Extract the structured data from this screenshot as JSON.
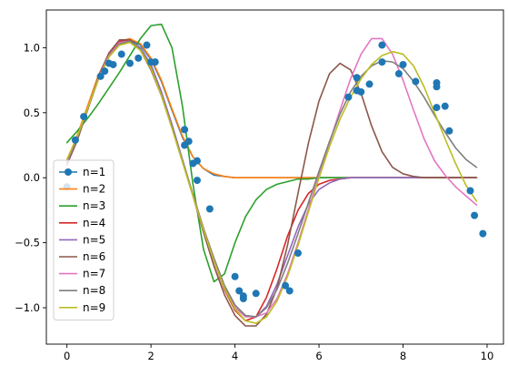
{
  "chart_data": {
    "type": "line",
    "title": "",
    "xlabel": "",
    "ylabel": "",
    "xlim": [
      -0.49,
      10.39
    ],
    "ylim": [
      -1.28,
      1.29
    ],
    "x_ticks": [
      0,
      2,
      4,
      6,
      8,
      10
    ],
    "y_ticks": [
      -1.0,
      -0.5,
      0.0,
      0.5,
      1.0
    ],
    "x_tick_labels": [
      "0",
      "2",
      "4",
      "6",
      "8",
      "10"
    ],
    "y_tick_labels": [
      "−1.0",
      "−0.5",
      "0.0",
      "0.5",
      "1.0"
    ],
    "grid": false,
    "legend_position": "lower-left",
    "scatter": {
      "color": "#1f77b4",
      "points": [
        [
          0.0,
          -0.07
        ],
        [
          0.2,
          0.29
        ],
        [
          0.4,
          0.47
        ],
        [
          0.8,
          0.78
        ],
        [
          0.9,
          0.82
        ],
        [
          1.0,
          0.88
        ],
        [
          1.1,
          0.87
        ],
        [
          1.3,
          0.95
        ],
        [
          1.5,
          0.88
        ],
        [
          1.7,
          0.92
        ],
        [
          1.9,
          1.02
        ],
        [
          2.0,
          0.89
        ],
        [
          2.1,
          0.89
        ],
        [
          2.8,
          0.37
        ],
        [
          2.8,
          0.25
        ],
        [
          2.9,
          0.28
        ],
        [
          3.0,
          0.11
        ],
        [
          3.1,
          -0.02
        ],
        [
          3.1,
          0.13
        ],
        [
          3.4,
          -0.24
        ],
        [
          4.0,
          -0.76
        ],
        [
          4.1,
          -0.87
        ],
        [
          4.2,
          -0.91
        ],
        [
          4.2,
          -0.93
        ],
        [
          4.5,
          -0.89
        ],
        [
          5.2,
          -0.83
        ],
        [
          5.3,
          -0.87
        ],
        [
          5.5,
          -0.58
        ],
        [
          6.7,
          0.62
        ],
        [
          6.9,
          0.67
        ],
        [
          6.9,
          0.77
        ],
        [
          7.0,
          0.66
        ],
        [
          7.2,
          0.72
        ],
        [
          7.5,
          1.02
        ],
        [
          7.5,
          0.89
        ],
        [
          7.9,
          0.8
        ],
        [
          8.0,
          0.87
        ],
        [
          8.3,
          0.74
        ],
        [
          8.8,
          0.73
        ],
        [
          8.8,
          0.7
        ],
        [
          8.8,
          0.54
        ],
        [
          9.0,
          0.55
        ],
        [
          9.1,
          0.36
        ],
        [
          9.6,
          -0.1
        ],
        [
          9.7,
          -0.29
        ],
        [
          9.9,
          -0.43
        ]
      ]
    },
    "x": [
      0.0,
      0.25,
      0.5,
      0.75,
      1.0,
      1.25,
      1.5,
      1.75,
      2.0,
      2.25,
      2.5,
      2.75,
      3.0,
      3.25,
      3.5,
      3.75,
      4.0,
      4.25,
      4.5,
      4.75,
      5.0,
      5.25,
      5.5,
      5.75,
      6.0,
      6.25,
      6.5,
      6.75,
      7.0,
      7.25,
      7.5,
      7.75,
      8.0,
      8.25,
      8.5,
      8.75,
      9.0,
      9.25,
      9.5,
      9.75
    ],
    "series": [
      {
        "name": "n=1",
        "color": "#1f77b4",
        "values": [
          0.12,
          0.32,
          0.55,
          0.78,
          0.94,
          1.04,
          1.06,
          1.02,
          0.91,
          0.74,
          0.52,
          0.31,
          0.16,
          0.07,
          0.02,
          0.01,
          0.0,
          0.0,
          0.0,
          0.0,
          0.0,
          0.0,
          0.0,
          0.0,
          0.0,
          0.0,
          0.0,
          0.0,
          0.0,
          0.0,
          0.0,
          0.0,
          0.0,
          0.0,
          0.0,
          0.0,
          0.0,
          0.0,
          0.0,
          0.0
        ]
      },
      {
        "name": "n=2",
        "color": "#ff7f0e",
        "values": [
          0.13,
          0.33,
          0.56,
          0.79,
          0.95,
          1.05,
          1.07,
          1.03,
          0.92,
          0.75,
          0.53,
          0.32,
          0.16,
          0.07,
          0.03,
          0.01,
          0.0,
          0.0,
          0.0,
          0.0,
          0.0,
          0.0,
          0.0,
          0.0,
          0.0,
          0.0,
          0.0,
          0.0,
          0.0,
          0.0,
          0.0,
          0.0,
          0.0,
          0.0,
          0.0,
          0.0,
          0.0,
          0.0,
          0.0,
          0.0
        ]
      },
      {
        "name": "n=3",
        "color": "#2ca02c",
        "values": [
          0.27,
          0.36,
          0.46,
          0.57,
          0.69,
          0.81,
          0.94,
          1.07,
          1.17,
          1.18,
          1.0,
          0.55,
          -0.05,
          -0.55,
          -0.8,
          -0.74,
          -0.5,
          -0.3,
          -0.17,
          -0.09,
          -0.05,
          -0.03,
          -0.01,
          -0.01,
          0.0,
          0.0,
          0.0,
          0.0,
          0.0,
          0.0,
          0.0,
          0.0,
          0.0,
          0.0,
          0.0,
          0.0,
          0.0,
          0.0,
          0.0,
          0.0
        ]
      },
      {
        "name": "n=4",
        "color": "#d62728",
        "values": [
          0.12,
          0.3,
          0.53,
          0.77,
          0.95,
          1.05,
          1.06,
          0.99,
          0.85,
          0.64,
          0.39,
          0.13,
          -0.13,
          -0.39,
          -0.64,
          -0.86,
          -1.02,
          -1.1,
          -1.07,
          -0.92,
          -0.7,
          -0.45,
          -0.25,
          -0.12,
          -0.05,
          -0.02,
          -0.01,
          0.0,
          0.0,
          0.0,
          0.0,
          0.0,
          0.0,
          0.0,
          0.0,
          0.0,
          0.0,
          0.0,
          0.0,
          0.0
        ]
      },
      {
        "name": "n=5",
        "color": "#9467bd",
        "values": [
          0.13,
          0.31,
          0.53,
          0.76,
          0.93,
          1.03,
          1.05,
          1.0,
          0.87,
          0.66,
          0.41,
          0.14,
          -0.13,
          -0.39,
          -0.62,
          -0.83,
          -0.98,
          -1.06,
          -1.07,
          -0.99,
          -0.82,
          -0.6,
          -0.38,
          -0.2,
          -0.09,
          -0.04,
          -0.01,
          0.0,
          0.0,
          0.0,
          0.0,
          0.0,
          0.0,
          0.0,
          0.0,
          0.0,
          0.0,
          0.0,
          0.0,
          0.0
        ]
      },
      {
        "name": "n=6",
        "color": "#8c564b",
        "values": [
          0.1,
          0.29,
          0.53,
          0.78,
          0.96,
          1.06,
          1.06,
          0.98,
          0.83,
          0.63,
          0.39,
          0.13,
          -0.14,
          -0.42,
          -0.68,
          -0.9,
          -1.06,
          -1.14,
          -1.14,
          -1.05,
          -0.85,
          -0.52,
          -0.12,
          0.27,
          0.59,
          0.8,
          0.88,
          0.83,
          0.65,
          0.4,
          0.2,
          0.08,
          0.03,
          0.01,
          0.0,
          0.0,
          0.0,
          0.0,
          0.0,
          0.0
        ]
      },
      {
        "name": "n=7",
        "color": "#e377c2",
        "values": [
          0.12,
          0.31,
          0.53,
          0.77,
          0.94,
          1.04,
          1.05,
          0.99,
          0.85,
          0.64,
          0.39,
          0.13,
          -0.14,
          -0.4,
          -0.64,
          -0.85,
          -1.0,
          -1.07,
          -1.07,
          -1.04,
          -0.93,
          -0.74,
          -0.5,
          -0.24,
          0.02,
          0.27,
          0.52,
          0.76,
          0.95,
          1.07,
          1.07,
          0.95,
          0.75,
          0.52,
          0.3,
          0.13,
          0.02,
          -0.07,
          -0.14,
          -0.21
        ]
      },
      {
        "name": "n=8",
        "color": "#7f7f7f",
        "values": [
          0.13,
          0.31,
          0.53,
          0.76,
          0.93,
          1.03,
          1.05,
          0.99,
          0.85,
          0.64,
          0.39,
          0.13,
          -0.13,
          -0.39,
          -0.62,
          -0.83,
          -0.98,
          -1.06,
          -1.07,
          -1.0,
          -0.86,
          -0.66,
          -0.43,
          -0.19,
          0.05,
          0.28,
          0.49,
          0.66,
          0.78,
          0.86,
          0.9,
          0.89,
          0.84,
          0.74,
          0.62,
          0.48,
          0.35,
          0.23,
          0.14,
          0.08
        ]
      },
      {
        "name": "n=9",
        "color": "#bcbd22",
        "values": [
          0.14,
          0.32,
          0.54,
          0.76,
          0.93,
          1.02,
          1.04,
          0.98,
          0.84,
          0.63,
          0.38,
          0.12,
          -0.14,
          -0.4,
          -0.64,
          -0.85,
          -1.01,
          -1.1,
          -1.12,
          -1.07,
          -0.95,
          -0.76,
          -0.52,
          -0.26,
          0.0,
          0.24,
          0.45,
          0.62,
          0.76,
          0.87,
          0.94,
          0.97,
          0.95,
          0.86,
          0.7,
          0.5,
          0.3,
          0.11,
          -0.06,
          -0.18
        ]
      }
    ]
  }
}
